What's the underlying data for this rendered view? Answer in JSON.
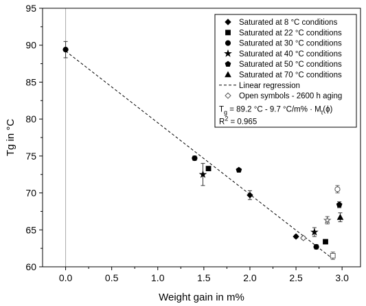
{
  "chart_data": {
    "type": "scatter",
    "xlabel": "Weight gain in m%",
    "ylabel": "Tg in °C",
    "xlim": [
      -0.25,
      3.2
    ],
    "ylim": [
      60,
      95
    ],
    "x_ticks": [
      "0.0",
      "0.5",
      "1.0",
      "1.5",
      "2.0",
      "2.5",
      "3.0"
    ],
    "y_ticks": [
      "60",
      "65",
      "70",
      "75",
      "80",
      "85",
      "90",
      "95"
    ],
    "grid": false,
    "legend_position": "top-right",
    "reference_line": {
      "x": 0,
      "style": "vertical-gray"
    },
    "series": [
      {
        "name": "Saturated at 8 °C conditions",
        "marker": "diamond",
        "points": [
          {
            "x": 2.0,
            "y": 69.7,
            "err": 0.6,
            "open": false
          },
          {
            "x": 2.5,
            "y": 64.1,
            "err": 0.2,
            "open": false
          },
          {
            "x": 2.58,
            "y": 63.9,
            "err": 0.2,
            "open": true
          }
        ]
      },
      {
        "name": "Saturated at 22 °C conditions",
        "marker": "square",
        "points": [
          {
            "x": 1.55,
            "y": 73.3,
            "err": 0,
            "open": false
          },
          {
            "x": 2.82,
            "y": 63.4,
            "err": 0.3,
            "open": false
          },
          {
            "x": 2.9,
            "y": 61.5,
            "err": 0.5,
            "open": true
          }
        ]
      },
      {
        "name": "Saturated at 30 °C conditions",
        "marker": "circle",
        "points": [
          {
            "x": 0.0,
            "y": 89.4,
            "err": 1.1,
            "open": false
          },
          {
            "x": 1.4,
            "y": 74.7,
            "err": 0.3,
            "open": false
          },
          {
            "x": 2.72,
            "y": 62.7,
            "err": 0.3,
            "open": false
          },
          {
            "x": 2.95,
            "y": 70.5,
            "err": 0.5,
            "open": true
          }
        ]
      },
      {
        "name": "Saturated at 40 °C conditions",
        "marker": "star",
        "points": [
          {
            "x": 1.49,
            "y": 72.5,
            "err": 1.5,
            "open": false
          },
          {
            "x": 2.7,
            "y": 64.7,
            "err": 0.6,
            "open": false
          },
          {
            "x": 2.84,
            "y": 66.3,
            "err": 0.5,
            "open": true
          }
        ]
      },
      {
        "name": "Saturated at 50 °C conditions",
        "marker": "pentagon",
        "points": [
          {
            "x": 1.88,
            "y": 73.1,
            "err": 0.2,
            "open": false
          },
          {
            "x": 2.97,
            "y": 68.4,
            "err": 0.4,
            "open": false
          }
        ]
      },
      {
        "name": "Saturated at 70 °C conditions",
        "marker": "triangle",
        "points": [
          {
            "x": 2.98,
            "y": 66.7,
            "err": 0.6,
            "open": false
          }
        ]
      }
    ],
    "regression": {
      "name": "Linear regression",
      "intercept": 89.2,
      "slope": -9.7,
      "x_range": [
        0,
        2.88
      ]
    },
    "legend_extra": {
      "open_note": "Open symbols - 2600 h aging",
      "equation_prefix": "T",
      "equation_sub": "g",
      "equation_mid": " = 89.2 °C - 9.7 °C/m% · M",
      "equation_sub2": "t",
      "equation_end": "(ϕ)",
      "r2_prefix": "R",
      "r2_sup": "2",
      "r2_value": " = 0.965"
    }
  }
}
